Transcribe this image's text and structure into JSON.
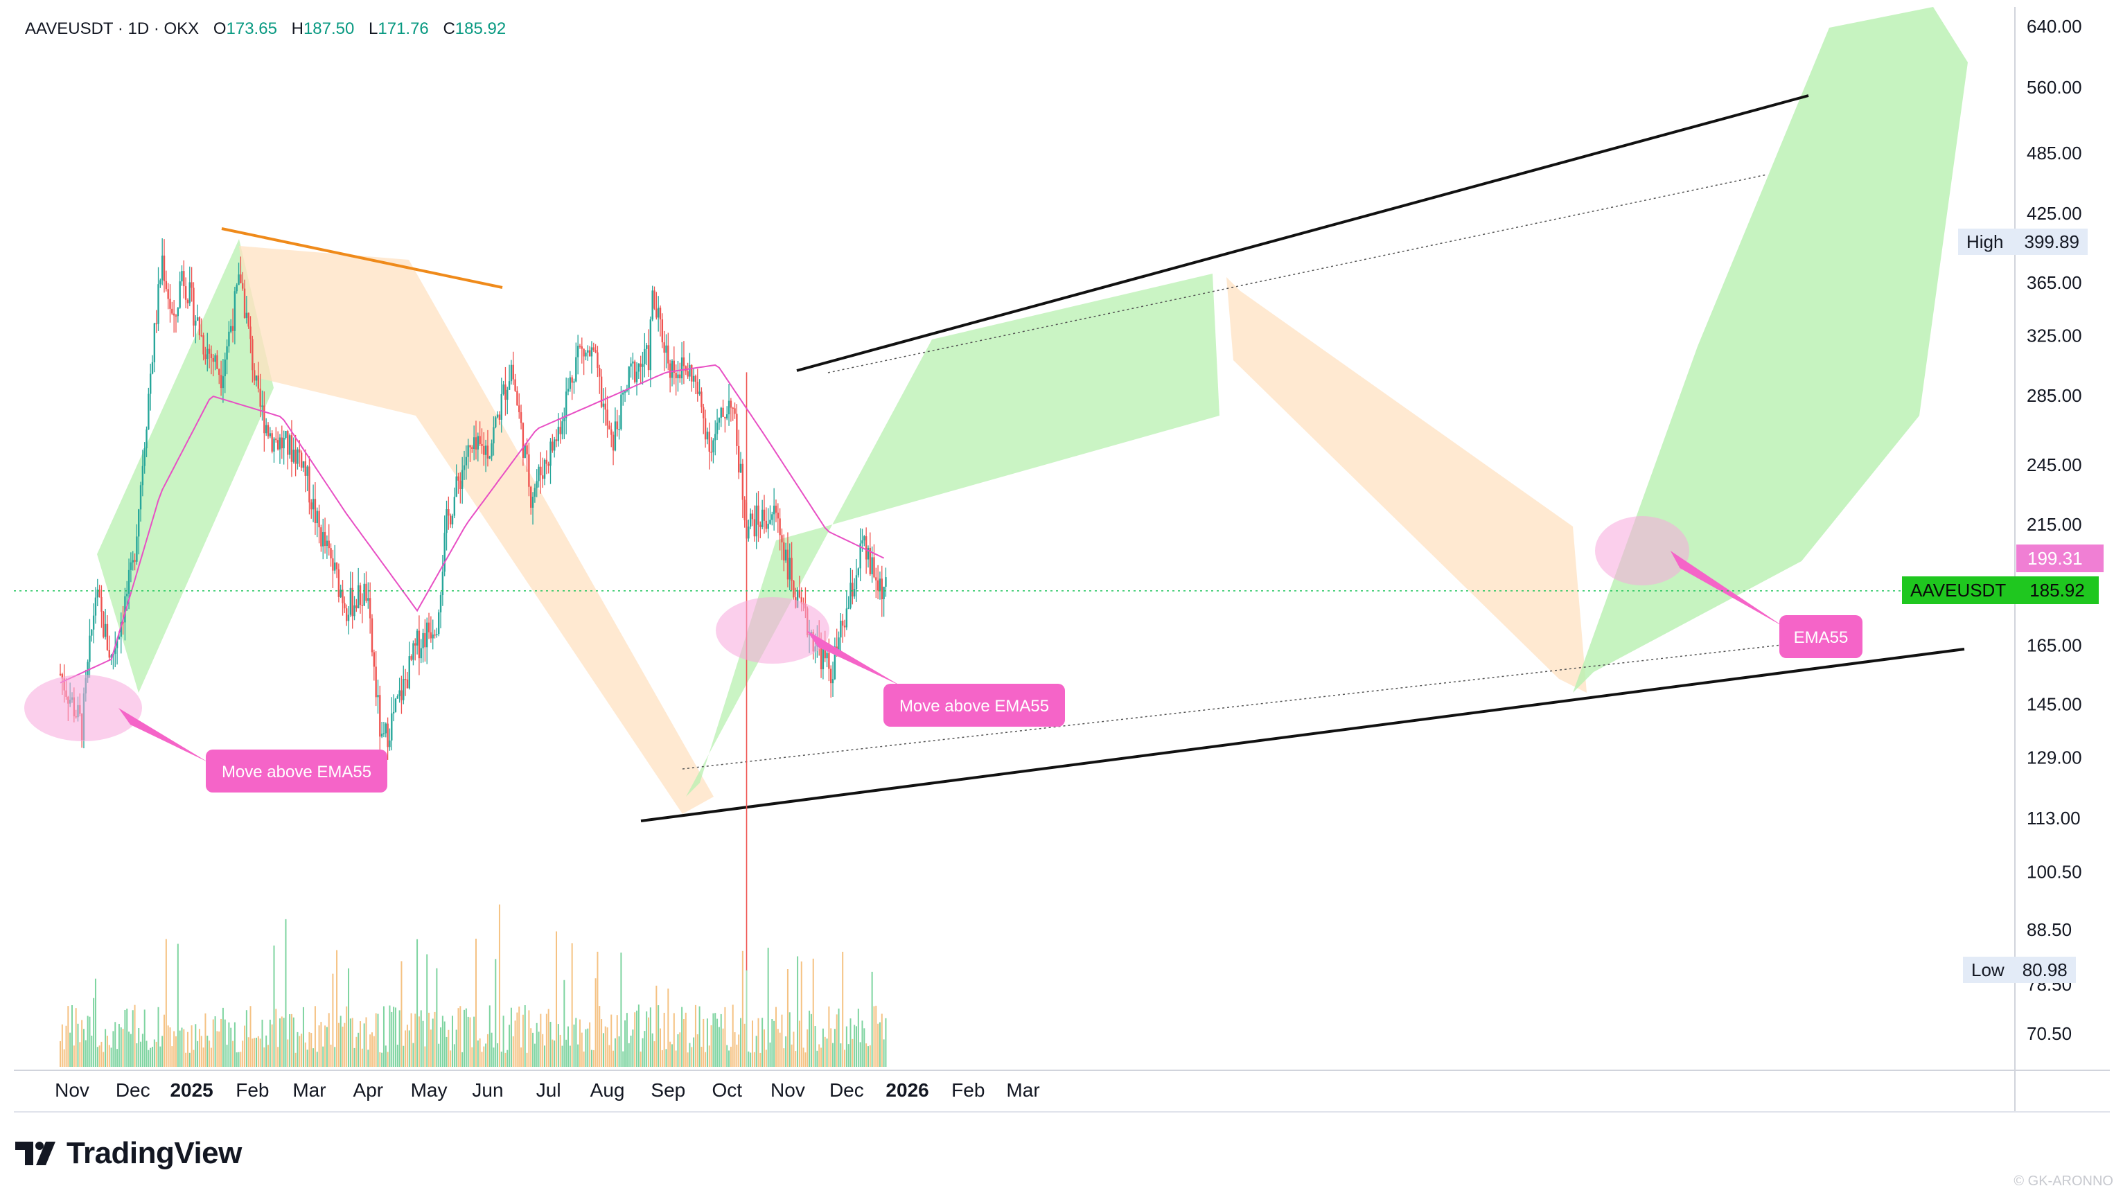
{
  "header": {
    "symbol": "AAVEUSDT · 1D · OKX",
    "open_label": "O",
    "open": "173.65",
    "high_label": "H",
    "high": "187.50",
    "low_label": "L",
    "low": "171.76",
    "close_label": "C",
    "close": "185.92"
  },
  "brand": {
    "name": "TradingView",
    "credit": "© GK-ARONNO"
  },
  "badges": {
    "high_label": "High",
    "high_value": "399.89",
    "low_label": "Low",
    "low_value": "80.98",
    "ema_value": "199.31",
    "symbol_label": "AAVEUSDT",
    "last_value": "185.92"
  },
  "annotations": {
    "callout_1": "Move above EMA55",
    "callout_2": "Move above EMA55",
    "callout_3": "EMA55"
  },
  "colors": {
    "up": "#26a69a",
    "down": "#ef5350",
    "ema": "#e84fc4",
    "callout": "#f564c8",
    "green_zone": "#b8f0b0",
    "orange_zone": "#ffe2c2",
    "last_badge": "#1fc71f"
  },
  "chart_data": {
    "type": "candlestick",
    "price_scale": "log",
    "y_ticks": [
      "640.00",
      "560.00",
      "485.00",
      "425.00",
      "365.00",
      "325.00",
      "285.00",
      "245.00",
      "215.00",
      "185.00",
      "165.00",
      "145.00",
      "129.00",
      "113.00",
      "100.50",
      "88.50",
      "78.50",
      "70.50"
    ],
    "x_ticks": [
      "Nov",
      "Dec",
      "2025",
      "Feb",
      "Mar",
      "Apr",
      "May",
      "Jun",
      "Jul",
      "Aug",
      "Sep",
      "Oct",
      "Nov",
      "Dec",
      "2026",
      "Feb",
      "Mar"
    ],
    "ylim": [
      64,
      680
    ],
    "last_close": 185.92,
    "ema55_last": 199.31,
    "period_high": 399.89,
    "period_low": 80.98,
    "price_anchors": [
      [
        "2024-10-25",
        155
      ],
      [
        "2024-11-05",
        138
      ],
      [
        "2024-11-12",
        185
      ],
      [
        "2024-11-20",
        160
      ],
      [
        "2024-12-01",
        195
      ],
      [
        "2024-12-10",
        300
      ],
      [
        "2024-12-16",
        385
      ],
      [
        "2024-12-22",
        330
      ],
      [
        "2024-12-26",
        375
      ],
      [
        "2025-01-06",
        320
      ],
      [
        "2025-01-15",
        300
      ],
      [
        "2025-01-25",
        370
      ],
      [
        "2025-02-03",
        280
      ],
      [
        "2025-02-10",
        260
      ],
      [
        "2025-02-25",
        250
      ],
      [
        "2025-03-05",
        215
      ],
      [
        "2025-03-20",
        180
      ],
      [
        "2025-03-30",
        185
      ],
      [
        "2025-04-07",
        132
      ],
      [
        "2025-04-15",
        145
      ],
      [
        "2025-04-25",
        165
      ],
      [
        "2025-05-05",
        175
      ],
      [
        "2025-05-10",
        215
      ],
      [
        "2025-05-20",
        250
      ],
      [
        "2025-06-01",
        255
      ],
      [
        "2025-06-12",
        305
      ],
      [
        "2025-06-22",
        230
      ],
      [
        "2025-07-05",
        260
      ],
      [
        "2025-07-16",
        315
      ],
      [
        "2025-07-24",
        310
      ],
      [
        "2025-08-02",
        255
      ],
      [
        "2025-08-12",
        300
      ],
      [
        "2025-08-21",
        310
      ],
      [
        "2025-08-23",
        352
      ],
      [
        "2025-09-01",
        305
      ],
      [
        "2025-09-12",
        300
      ],
      [
        "2025-09-22",
        255
      ],
      [
        "2025-10-02",
        285
      ],
      [
        "2025-10-10",
        215
      ],
      [
        "2025-10-25",
        220
      ],
      [
        "2025-11-05",
        180
      ],
      [
        "2025-11-15",
        165
      ],
      [
        "2025-11-22",
        155
      ],
      [
        "2025-12-01",
        180
      ],
      [
        "2025-12-08",
        205
      ],
      [
        "2025-12-15",
        190
      ],
      [
        "2025-12-20",
        186
      ]
    ],
    "ema55_anchors": [
      [
        "2024-10-25",
        152
      ],
      [
        "2024-11-20",
        160
      ],
      [
        "2024-12-15",
        230
      ],
      [
        "2025-01-10",
        285
      ],
      [
        "2025-02-15",
        272
      ],
      [
        "2025-03-20",
        220
      ],
      [
        "2025-04-25",
        178
      ],
      [
        "2025-05-20",
        215
      ],
      [
        "2025-06-25",
        265
      ],
      [
        "2025-07-30",
        283
      ],
      [
        "2025-08-30",
        300
      ],
      [
        "2025-09-25",
        305
      ],
      [
        "2025-10-20",
        260
      ],
      [
        "2025-11-20",
        212
      ],
      [
        "2025-12-20",
        199.31
      ]
    ],
    "volume_note": "volume histogram along the bottom; largest spike on 2025-10-10"
  }
}
